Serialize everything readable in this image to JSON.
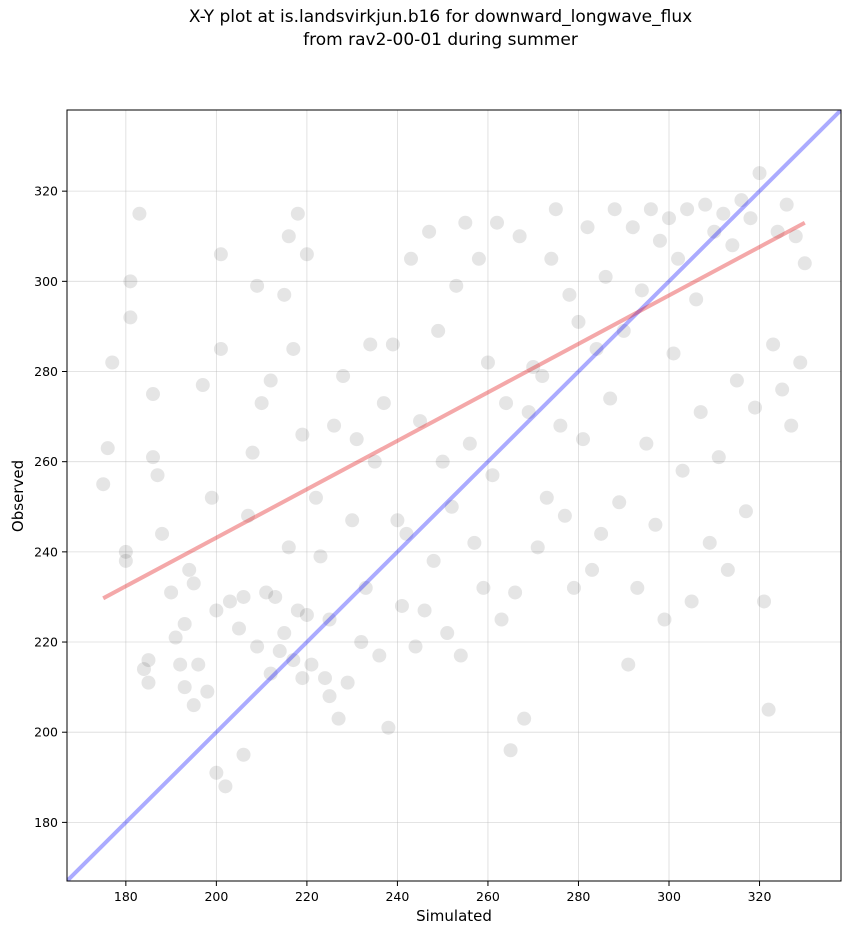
{
  "chart_data": {
    "type": "scatter",
    "title": "X-Y plot at is.landsvirkjun.b16 for downward_longwave_flux\nfrom rav2-00-01 during summer",
    "xlabel": "Simulated",
    "ylabel": "Observed",
    "xlim": [
      167,
      338
    ],
    "ylim": [
      167,
      338
    ],
    "xticks": [
      180,
      200,
      220,
      240,
      260,
      280,
      300,
      320
    ],
    "yticks": [
      180,
      200,
      220,
      240,
      260,
      280,
      300,
      320
    ],
    "grid": true,
    "colors": {
      "points": "#000000",
      "one_to_one": "#0000ff",
      "fit": "#e31a1c"
    },
    "one_to_one_line": {
      "x": [
        167,
        338
      ],
      "y": [
        167,
        338
      ]
    },
    "regression_line": {
      "x": [
        175,
        330
      ],
      "y": [
        229.7,
        313.0
      ]
    },
    "series": [
      {
        "x": [
          175,
          176,
          177,
          180,
          180,
          181,
          181,
          183,
          184,
          185,
          185,
          186,
          186,
          187,
          188,
          190,
          191,
          192,
          193,
          193,
          194,
          195,
          195,
          196,
          197,
          198,
          199,
          200,
          200,
          201,
          201,
          202,
          203,
          205,
          206,
          206,
          207,
          208,
          209,
          209,
          210,
          211,
          212,
          212,
          213,
          214,
          215,
          215,
          216,
          216,
          217,
          217,
          218,
          218,
          219,
          219,
          220,
          220,
          221,
          222,
          223,
          224,
          225,
          225,
          226,
          227,
          228,
          229,
          230,
          231,
          232,
          233,
          234,
          235,
          236,
          237,
          238,
          239,
          240,
          241,
          242,
          243,
          244,
          245,
          246,
          247,
          248,
          249,
          250,
          251,
          252,
          253,
          254,
          255,
          256,
          257,
          258,
          259,
          260,
          261,
          262,
          263,
          264,
          265,
          266,
          267,
          268,
          269,
          270,
          271,
          272,
          273,
          274,
          275,
          276,
          277,
          278,
          279,
          280,
          281,
          282,
          283,
          284,
          285,
          286,
          287,
          288,
          289,
          290,
          291,
          292,
          293,
          294,
          295,
          296,
          297,
          298,
          299,
          300,
          301,
          302,
          303,
          304,
          305,
          306,
          307,
          308,
          309,
          310,
          311,
          312,
          313,
          314,
          315,
          316,
          317,
          318,
          319,
          320,
          321,
          322,
          323,
          324,
          325,
          326,
          327,
          328,
          329,
          330
        ],
        "y": [
          255,
          263,
          282,
          240,
          238,
          300,
          292,
          315,
          214,
          216,
          211,
          261,
          275,
          257,
          244,
          231,
          221,
          215,
          224,
          210,
          236,
          233,
          206,
          215,
          277,
          209,
          252,
          227,
          191,
          285,
          306,
          188,
          229,
          223,
          230,
          195,
          248,
          262,
          219,
          299,
          273,
          231,
          213,
          278,
          230,
          218,
          297,
          222,
          241,
          310,
          216,
          285,
          227,
          315,
          212,
          266,
          226,
          306,
          215,
          252,
          239,
          212,
          208,
          225,
          268,
          203,
          279,
          211,
          247,
          265,
          220,
          232,
          286,
          260,
          217,
          273,
          201,
          286,
          247,
          228,
          244,
          305,
          219,
          269,
          227,
          311,
          238,
          289,
          260,
          222,
          250,
          299,
          217,
          313,
          264,
          242,
          305,
          232,
          282,
          257,
          313,
          225,
          273,
          196,
          231,
          310,
          203,
          271,
          281,
          241,
          279,
          252,
          305,
          316,
          268,
          248,
          297,
          232,
          291,
          265,
          312,
          236,
          285,
          244,
          301,
          274,
          316,
          251,
          289,
          215,
          312,
          232,
          298,
          264,
          316,
          246,
          309,
          225,
          314,
          284,
          305,
          258,
          316,
          229,
          296,
          271,
          317,
          242,
          311,
          261,
          315,
          236,
          308,
          278,
          318,
          249,
          314,
          272,
          324,
          229,
          205,
          286,
          311,
          276,
          317,
          268,
          310,
          282,
          304
        ]
      }
    ]
  }
}
